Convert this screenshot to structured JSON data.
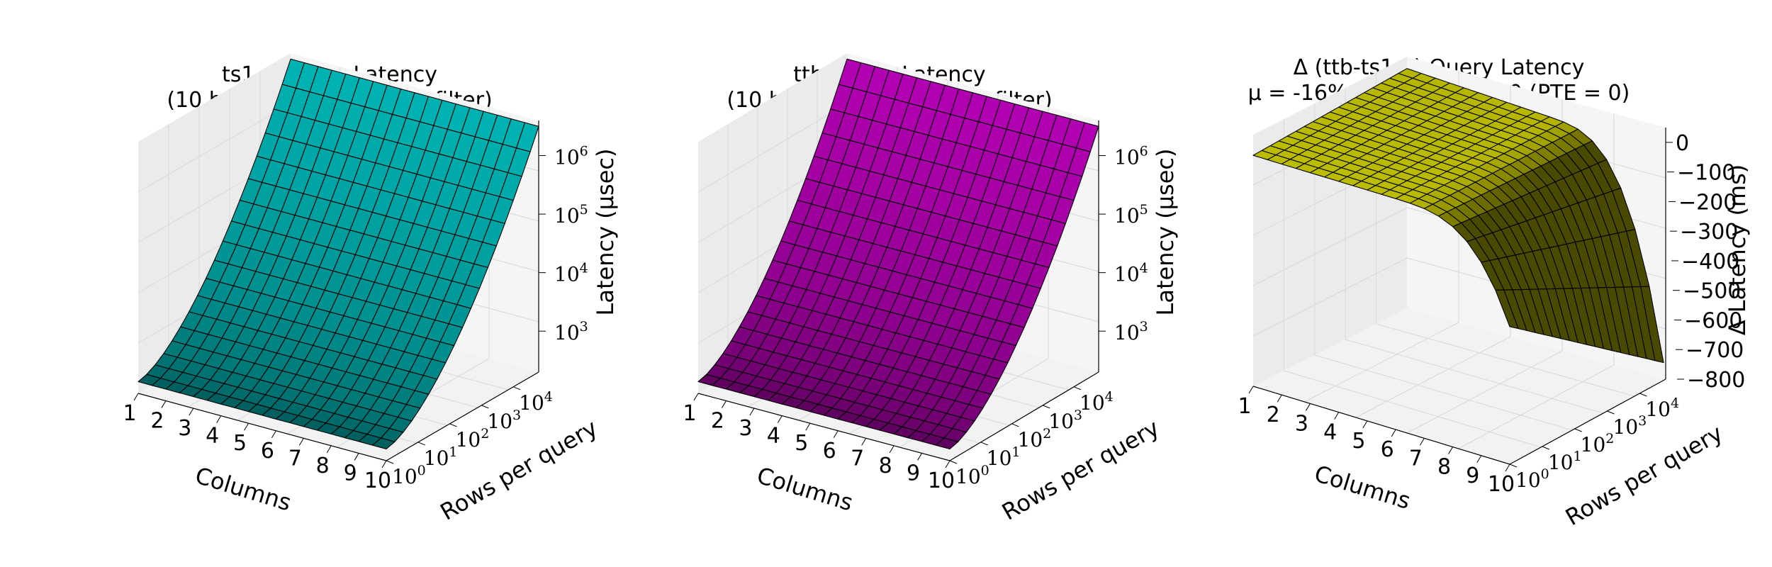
{
  "chart_data": [
    {
      "type": "surface",
      "title_line1": "ts1.4 Query Latency",
      "title_line2": "(10 bytes per column, nofilter)",
      "xlabel": "Columns",
      "ylabel": "Rows per query",
      "zlabel": "Latency (μsec)",
      "x_ticks": [
        "1",
        "2",
        "3",
        "4",
        "5",
        "6",
        "7",
        "8",
        "9",
        "10"
      ],
      "y_ticks": [
        {
          "base": "10",
          "exp": "0"
        },
        {
          "base": "10",
          "exp": "1"
        },
        {
          "base": "10",
          "exp": "2"
        },
        {
          "base": "10",
          "exp": "3"
        },
        {
          "base": "10",
          "exp": "4"
        }
      ],
      "z_ticks": [
        {
          "base": "10",
          "exp": "3"
        },
        {
          "base": "10",
          "exp": "4"
        },
        {
          "base": "10",
          "exp": "5"
        },
        {
          "base": "10",
          "exp": "6"
        }
      ],
      "x_range": [
        1,
        10
      ],
      "y_range_log10": [
        0,
        4.8
      ],
      "z_range_log10": [
        2.3,
        6.6
      ],
      "z_scale": "log",
      "surface_color": "#00bfbf",
      "z_min_log10": 2.5,
      "z_max_log10": 6.5
    },
    {
      "type": "surface",
      "title_line1": "ttb Query Latency",
      "title_line2": "(10 bytes per column, nofilter)",
      "xlabel": "Columns",
      "ylabel": "Rows per query",
      "zlabel": "Latency (μsec)",
      "x_ticks": [
        "1",
        "2",
        "3",
        "4",
        "5",
        "6",
        "7",
        "8",
        "9",
        "10"
      ],
      "y_ticks": [
        {
          "base": "10",
          "exp": "0"
        },
        {
          "base": "10",
          "exp": "1"
        },
        {
          "base": "10",
          "exp": "2"
        },
        {
          "base": "10",
          "exp": "3"
        },
        {
          "base": "10",
          "exp": "4"
        }
      ],
      "z_ticks": [
        {
          "base": "10",
          "exp": "3"
        },
        {
          "base": "10",
          "exp": "4"
        },
        {
          "base": "10",
          "exp": "5"
        },
        {
          "base": "10",
          "exp": "6"
        }
      ],
      "x_range": [
        1,
        10
      ],
      "y_range_log10": [
        0,
        4.8
      ],
      "z_range_log10": [
        2.3,
        6.6
      ],
      "z_scale": "log",
      "surface_color": "#bf00bf",
      "z_min_log10": 2.5,
      "z_max_log10": 6.5
    },
    {
      "type": "surface",
      "title_line1": "Δ (ttb-ts1.4) Query Latency",
      "title_line2_prefix": "μ = -16%, ",
      "title_chi": "χ",
      "title_chi_sub": "18",
      "title_chi_sup": "2",
      "title_line2_suffix": " = 14311.60 (PTE = 0)",
      "xlabel": "Columns",
      "ylabel": "Rows per query",
      "zlabel": "Δ Latency (ms)",
      "x_ticks": [
        "1",
        "2",
        "3",
        "4",
        "5",
        "6",
        "7",
        "8",
        "9",
        "10"
      ],
      "y_ticks": [
        {
          "base": "10",
          "exp": "0"
        },
        {
          "base": "10",
          "exp": "1"
        },
        {
          "base": "10",
          "exp": "2"
        },
        {
          "base": "10",
          "exp": "3"
        },
        {
          "base": "10",
          "exp": "4"
        }
      ],
      "z_ticks": [
        "0",
        "100",
        "200",
        "300",
        "400",
        "500",
        "600",
        "700",
        "800"
      ],
      "z_tick_values": [
        0,
        -100,
        -200,
        -300,
        -400,
        -500,
        -600,
        -700,
        -800
      ],
      "x_range": [
        1,
        10
      ],
      "y_range_log10": [
        0,
        4.8
      ],
      "z_range": [
        -800,
        50
      ],
      "z_scale": "linear",
      "surface_color": "#bfbf00",
      "z_plateau": -20,
      "z_min": -720
    }
  ]
}
